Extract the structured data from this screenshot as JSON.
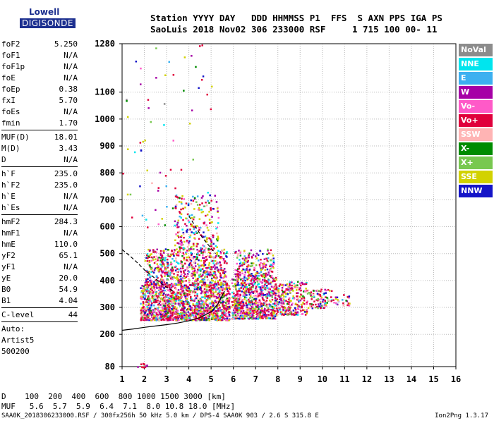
{
  "logo": {
    "line1": "Lowell",
    "line2": "DIGISONDE"
  },
  "header": {
    "line1": "Station YYYY DAY   DDD HHMMSS P1  FFS  S AXN PPS IGA PS",
    "line2": "SaoLuis 2018 Nov02 306 233000 RSF     1 715 100 00- 11"
  },
  "params": [
    {
      "label": "foF2",
      "value": "5.250"
    },
    {
      "label": "foF1",
      "value": "N/A"
    },
    {
      "label": "foF1p",
      "value": "N/A"
    },
    {
      "label": "foE",
      "value": "N/A"
    },
    {
      "label": "foEp",
      "value": "0.38"
    },
    {
      "label": "fxI",
      "value": "5.70"
    },
    {
      "label": "foEs",
      "value": "N/A"
    },
    {
      "label": "fmin",
      "value": "1.70"
    },
    {
      "label": "MUF(D)",
      "value": "18.01"
    },
    {
      "label": "M(D)",
      "value": "3.43"
    },
    {
      "label": "D",
      "value": "N/A"
    },
    {
      "label": "h`F",
      "value": "235.0"
    },
    {
      "label": "h`F2",
      "value": "235.0"
    },
    {
      "label": "h`E",
      "value": "N/A"
    },
    {
      "label": "h`Es",
      "value": "N/A"
    },
    {
      "label": "hmF2",
      "value": "284.3"
    },
    {
      "label": "hmF1",
      "value": "N/A"
    },
    {
      "label": "hmE",
      "value": "110.0"
    },
    {
      "label": "yF2",
      "value": "65.1"
    },
    {
      "label": "yF1",
      "value": "N/A"
    },
    {
      "label": "yE",
      "value": "20.0"
    },
    {
      "label": "B0",
      "value": "54.9"
    },
    {
      "label": "B1",
      "value": "4.04"
    },
    {
      "label": "C-level",
      "value": "44"
    }
  ],
  "auto": {
    "line1": "Auto:",
    "line2": "Artist5",
    "line3": "500200"
  },
  "legend": [
    {
      "label": "NoVal",
      "color": "#8c8c8c"
    },
    {
      "label": "NNE",
      "color": "#00e5ee"
    },
    {
      "label": "E",
      "color": "#3cb0f0"
    },
    {
      "label": "W",
      "color": "#a600a6"
    },
    {
      "label": "Vo-",
      "color": "#ff5ac8"
    },
    {
      "label": "Vo+",
      "color": "#e0003c"
    },
    {
      "label": "SSW",
      "color": "#ffb4b4"
    },
    {
      "label": "X-",
      "color": "#008c00"
    },
    {
      "label": "X+",
      "color": "#78c850"
    },
    {
      "label": "SSE",
      "color": "#d2d200"
    },
    {
      "label": "NNW",
      "color": "#1414c8"
    }
  ],
  "footer": {
    "line1": "D    100  200  400  600  800 1000 1500 3000 [km]",
    "line2": "MUF   5.6  5.7  5.9  6.4  7.1  8.0 10.8 18.0 [MHz]"
  },
  "footnote": "SAA0K_2018306233000.RSF / 300fx256h 50 kHz 5.0 km / DPS-4 SAA0K 903 / 2.6 S 315.8 E",
  "version": "Ion2Png 1.3.17",
  "chart_data": {
    "type": "scatter",
    "xlim": [
      1,
      16
    ],
    "ylim": [
      80,
      1280
    ],
    "xticks": [
      1,
      2,
      3,
      4,
      5,
      6,
      7,
      8,
      9,
      10,
      11,
      12,
      13,
      14,
      15,
      16
    ],
    "yticks": [
      80,
      200,
      300,
      400,
      500,
      600,
      700,
      800,
      900,
      1000,
      1100,
      1280
    ],
    "grid": true,
    "legend_position": "right",
    "traces": [
      {
        "style": "solid",
        "x": [
          1.0,
          1.5,
          2.0,
          2.5,
          3.0,
          3.5,
          4.0,
          4.5,
          5.0,
          5.3,
          5.6
        ],
        "y": [
          215,
          220,
          226,
          231,
          236,
          242,
          250,
          262,
          284,
          312,
          360
        ]
      },
      {
        "style": "dashed",
        "x": [
          1.0,
          1.3,
          1.7,
          2.0,
          2.3,
          2.6,
          2.9,
          3.3
        ],
        "y": [
          515,
          495,
          465,
          440,
          420,
          400,
          380,
          360
        ]
      },
      {
        "style": "dashed",
        "x": [
          4.0,
          4.3,
          4.6,
          4.9,
          5.2
        ],
        "y": [
          640,
          600,
          560,
          530,
          500
        ]
      }
    ],
    "echo_clusters": [
      {
        "xr": [
          1.8,
          5.8
        ],
        "yr": [
          255,
          385
        ],
        "n": 1400
      },
      {
        "xr": [
          2.0,
          5.7
        ],
        "yr": [
          385,
          520
        ],
        "n": 700
      },
      {
        "xr": [
          3.3,
          5.3
        ],
        "yr": [
          520,
          720
        ],
        "n": 220
      },
      {
        "xr": [
          5.9,
          7.9
        ],
        "yr": [
          260,
          420
        ],
        "n": 700
      },
      {
        "xr": [
          6.0,
          7.8
        ],
        "yr": [
          420,
          520
        ],
        "n": 180
      },
      {
        "xr": [
          7.9,
          9.3
        ],
        "yr": [
          275,
          400
        ],
        "n": 260
      },
      {
        "xr": [
          9.3,
          10.4
        ],
        "yr": [
          300,
          370
        ],
        "n": 90
      },
      {
        "xr": [
          10.4,
          11.2
        ],
        "yr": [
          310,
          350
        ],
        "n": 25
      },
      {
        "xr": [
          1.0,
          5.0
        ],
        "yr": [
          600,
          1280
        ],
        "n": 70
      },
      {
        "xr": [
          1.6,
          2.1
        ],
        "yr": [
          80,
          95
        ],
        "n": 12
      }
    ]
  }
}
